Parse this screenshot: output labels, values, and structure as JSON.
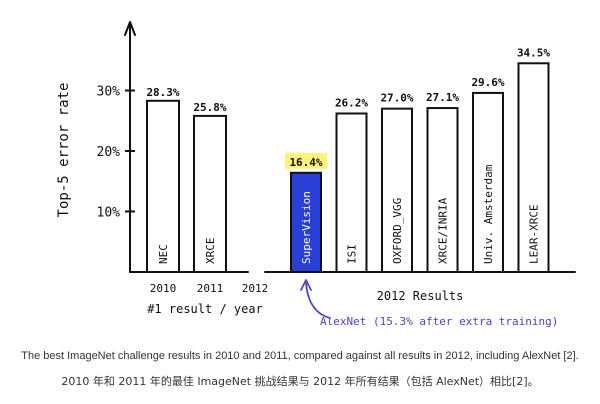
{
  "chart_data": {
    "type": "bar",
    "ylabel": "Top-5 error rate",
    "ylim": [
      0,
      40
    ],
    "yticks": [
      {
        "value": 10,
        "label": "10%"
      },
      {
        "value": 20,
        "label": "20%"
      },
      {
        "value": 30,
        "label": "30%"
      }
    ],
    "left_panel": {
      "xlabel": "#1 result / year",
      "years": [
        "2010",
        "2011",
        "2012"
      ],
      "bars": [
        {
          "name": "NEC",
          "year": "2010",
          "value": 28.3,
          "label": "28.3%"
        },
        {
          "name": "XRCE",
          "year": "2011",
          "value": 25.8,
          "label": "25.8%"
        }
      ]
    },
    "right_panel": {
      "xlabel": "2012 Results",
      "bars": [
        {
          "name": "SuperVision",
          "value": 16.4,
          "label": "16.4%",
          "highlight": true
        },
        {
          "name": "ISI",
          "value": 26.2,
          "label": "26.2%"
        },
        {
          "name": "OXFORD_VGG",
          "value": 27.0,
          "label": "27.0%"
        },
        {
          "name": "XRCE/INRIA",
          "value": 27.1,
          "label": "27.1%"
        },
        {
          "name": "Univ. Amsterdam",
          "value": 29.6,
          "label": "29.6%"
        },
        {
          "name": "LEAR-XRCE",
          "value": 34.5,
          "label": "34.5%"
        }
      ]
    },
    "annotation": {
      "text": "AlexNet (15.3% after extra training)",
      "target": "SuperVision"
    },
    "colors": {
      "bar_fill": "#ffffff",
      "ink": "#111111",
      "highlight_fill": "#2a3fd6",
      "highlight_label_bg": "#fff27a",
      "annotation_color": "#4a46c8"
    }
  },
  "caption": {
    "en": "The best ImageNet challenge results in 2010 and 2011, compared against all results in 2012, including AlexNet [2].",
    "zh": "2010 年和 2011 年的最佳 ImageNet 挑战结果与 2012 年所有结果（包括 AlexNet）相比[2]。"
  }
}
